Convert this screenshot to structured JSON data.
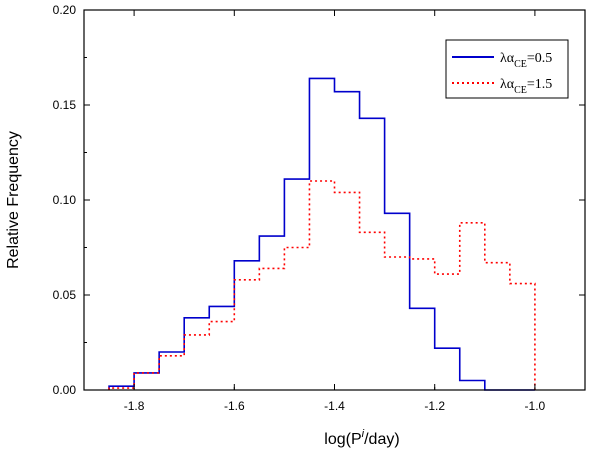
{
  "chart_data": {
    "type": "histogram",
    "title": "",
    "xlabel": "log(P",
    "xlabel_sup": "i",
    "xlabel_tail": "/day)",
    "ylabel": "Relative Frequency",
    "xlim": [
      -1.9,
      -0.9
    ],
    "ylim": [
      0.0,
      0.2
    ],
    "x_ticks": [
      -1.8,
      -1.6,
      -1.4,
      -1.2,
      -1.0
    ],
    "x_tick_labels": [
      "-1.8",
      "-1.6",
      "-1.4",
      "-1.2",
      "-1.0"
    ],
    "y_ticks": [
      0.0,
      0.05,
      0.1,
      0.15,
      0.2
    ],
    "y_tick_labels": [
      "0.00",
      "0.05",
      "0.10",
      "0.15",
      "0.20"
    ],
    "legend_position": "top-right",
    "bin_edges": [
      -1.85,
      -1.8,
      -1.75,
      -1.7,
      -1.65,
      -1.6,
      -1.55,
      -1.5,
      -1.45,
      -1.4,
      -1.35,
      -1.3,
      -1.25,
      -1.2,
      -1.15,
      -1.1,
      -1.05,
      -1.0
    ],
    "series": [
      {
        "name": "λα_CE=0.5",
        "legend_prefix": "λα",
        "legend_sub": "CE",
        "legend_suffix": "=0.5",
        "style": "solid",
        "color": "#0000cc",
        "values": [
          0.002,
          0.009,
          0.02,
          0.038,
          0.044,
          0.068,
          0.081,
          0.111,
          0.164,
          0.157,
          0.143,
          0.093,
          0.043,
          0.022,
          0.005,
          0.0,
          0.0
        ]
      },
      {
        "name": "λα_CE=1.5",
        "legend_prefix": "λα",
        "legend_sub": "CE",
        "legend_suffix": "=1.5",
        "style": "dotted",
        "color": "#ff0000",
        "values": [
          0.001,
          0.009,
          0.018,
          0.029,
          0.036,
          0.058,
          0.064,
          0.075,
          0.11,
          0.104,
          0.083,
          0.07,
          0.069,
          0.061,
          0.088,
          0.067,
          0.056
        ]
      }
    ]
  }
}
